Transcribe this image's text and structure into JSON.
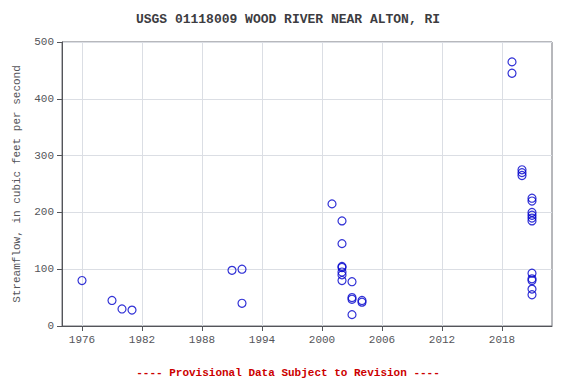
{
  "chart_data": {
    "type": "scatter",
    "title": "USGS 01118009 WOOD RIVER NEAR ALTON, RI",
    "ylabel": "Streamflow, in cubic feet per second",
    "x": [
      1976,
      1979,
      1980,
      1981,
      1991,
      1992,
      1992,
      2001,
      2002,
      2002,
      2002,
      2002,
      2002,
      2002,
      2002,
      2003,
      2003,
      2003,
      2003,
      2004,
      2004,
      2019,
      2019,
      2020,
      2020,
      2020,
      2021,
      2021,
      2021,
      2021,
      2021,
      2021,
      2021,
      2021,
      2021,
      2021,
      2021
    ],
    "values": [
      80,
      45,
      30,
      28,
      98,
      100,
      40,
      215,
      185,
      145,
      105,
      103,
      95,
      90,
      80,
      78,
      50,
      47,
      20,
      45,
      42,
      465,
      445,
      275,
      270,
      265,
      225,
      220,
      200,
      195,
      190,
      185,
      93,
      83,
      80,
      65,
      55
    ],
    "color": "#0000cc",
    "marker": "open-circle",
    "xlim": [
      1974,
      2023
    ],
    "ylim": [
      0,
      500
    ],
    "xticks": [
      1976,
      1982,
      1988,
      1994,
      2000,
      2006,
      2012,
      2018
    ],
    "yticks": [
      0,
      100,
      200,
      300,
      400,
      500
    ],
    "grid": true,
    "annotations": [
      {
        "text": "---- Provisional Data Subject to Revision ----",
        "color": "#cc0000"
      }
    ]
  }
}
